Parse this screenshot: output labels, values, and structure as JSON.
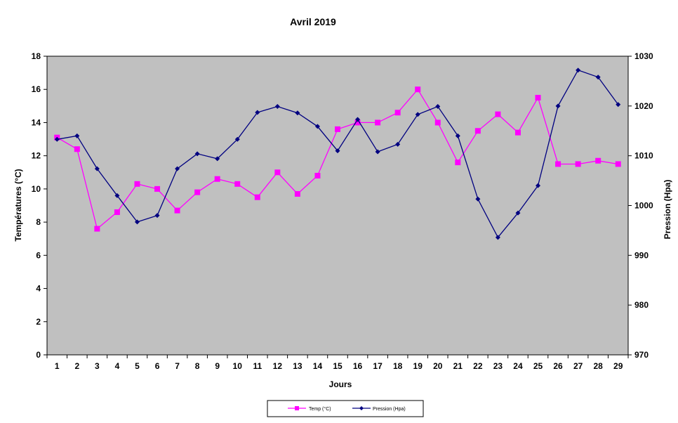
{
  "chart_data": {
    "type": "line",
    "title": "Avril 2019",
    "xlabel": "Jours",
    "ylabel_left": "Températures (°C)",
    "ylabel_right": "Pression (Hpa)",
    "x": [
      1,
      2,
      3,
      4,
      5,
      6,
      7,
      8,
      9,
      10,
      11,
      12,
      13,
      14,
      15,
      16,
      17,
      18,
      19,
      20,
      21,
      22,
      23,
      24,
      25,
      26,
      27,
      28,
      29
    ],
    "ylim_left": [
      0,
      18
    ],
    "ylim_right": [
      970,
      1030
    ],
    "yticks_left": [
      0,
      2,
      4,
      6,
      8,
      10,
      12,
      14,
      16,
      18
    ],
    "yticks_right": [
      970,
      980,
      990,
      1000,
      1010,
      1020,
      1030
    ],
    "grid": false,
    "legend_position": "bottom",
    "background_color": "#c0c0c0",
    "series": [
      {
        "name": "Temp (°C)",
        "axis": "left",
        "color": "#ff00ff",
        "marker": "square",
        "values": [
          13.1,
          12.4,
          7.6,
          8.6,
          10.3,
          10.0,
          8.7,
          9.8,
          10.6,
          10.3,
          9.5,
          11.0,
          9.7,
          10.8,
          13.6,
          14.0,
          14.0,
          14.6,
          16.0,
          14.0,
          11.6,
          13.5,
          14.5,
          13.4,
          15.5,
          11.5,
          11.5,
          11.7,
          11.5
        ]
      },
      {
        "name": "Pression (Hpa)",
        "axis": "right",
        "color": "#000080",
        "marker": "diamond",
        "values": [
          1013.3,
          1014.0,
          1007.4,
          1002.0,
          996.7,
          998.0,
          1007.4,
          1010.4,
          1009.4,
          1013.3,
          1018.7,
          1019.9,
          1018.6,
          1015.9,
          1011.0,
          1017.3,
          1010.8,
          1012.3,
          1018.3,
          1019.9,
          1014.0,
          1001.3,
          993.6,
          998.5,
          1004.0,
          1020.0,
          1027.2,
          1025.8,
          1020.3
        ]
      }
    ]
  }
}
